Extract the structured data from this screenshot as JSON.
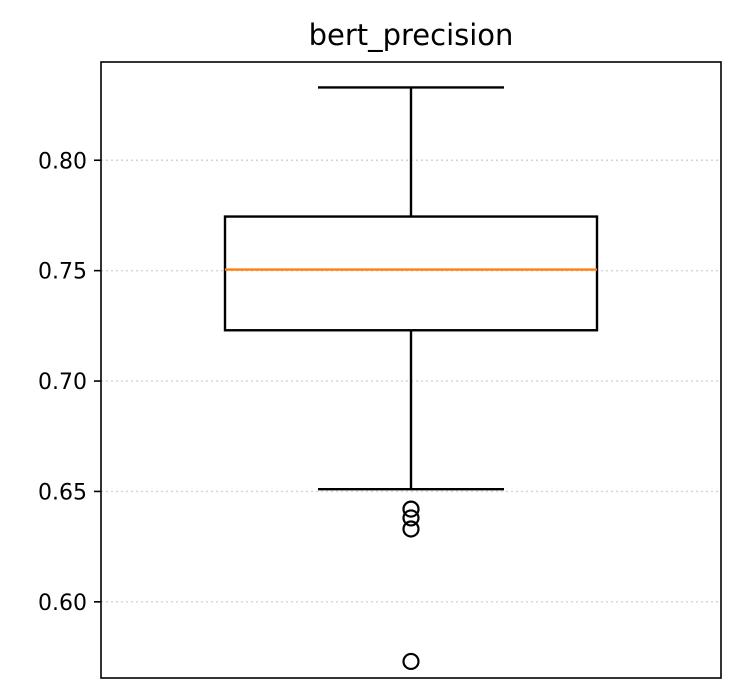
{
  "chart_data": {
    "type": "box",
    "title": "bert_precision",
    "xlabel": "",
    "ylabel": "",
    "ylim": [
      0.5655,
      0.8445
    ],
    "yticks": [
      0.6,
      0.65,
      0.7,
      0.75,
      0.8
    ],
    "ytick_labels": [
      "0.60",
      "0.65",
      "0.70",
      "0.75",
      "0.80"
    ],
    "grid": "y dotted",
    "box": {
      "whisker_low": 0.651,
      "q1": 0.723,
      "median": 0.7505,
      "q3": 0.7745,
      "whisker_high": 0.833,
      "outliers": [
        0.642,
        0.638,
        0.633,
        0.573
      ]
    },
    "colors": {
      "box": "#000000",
      "median": "#ff7f0e",
      "grid": "#d3d3d3"
    }
  }
}
